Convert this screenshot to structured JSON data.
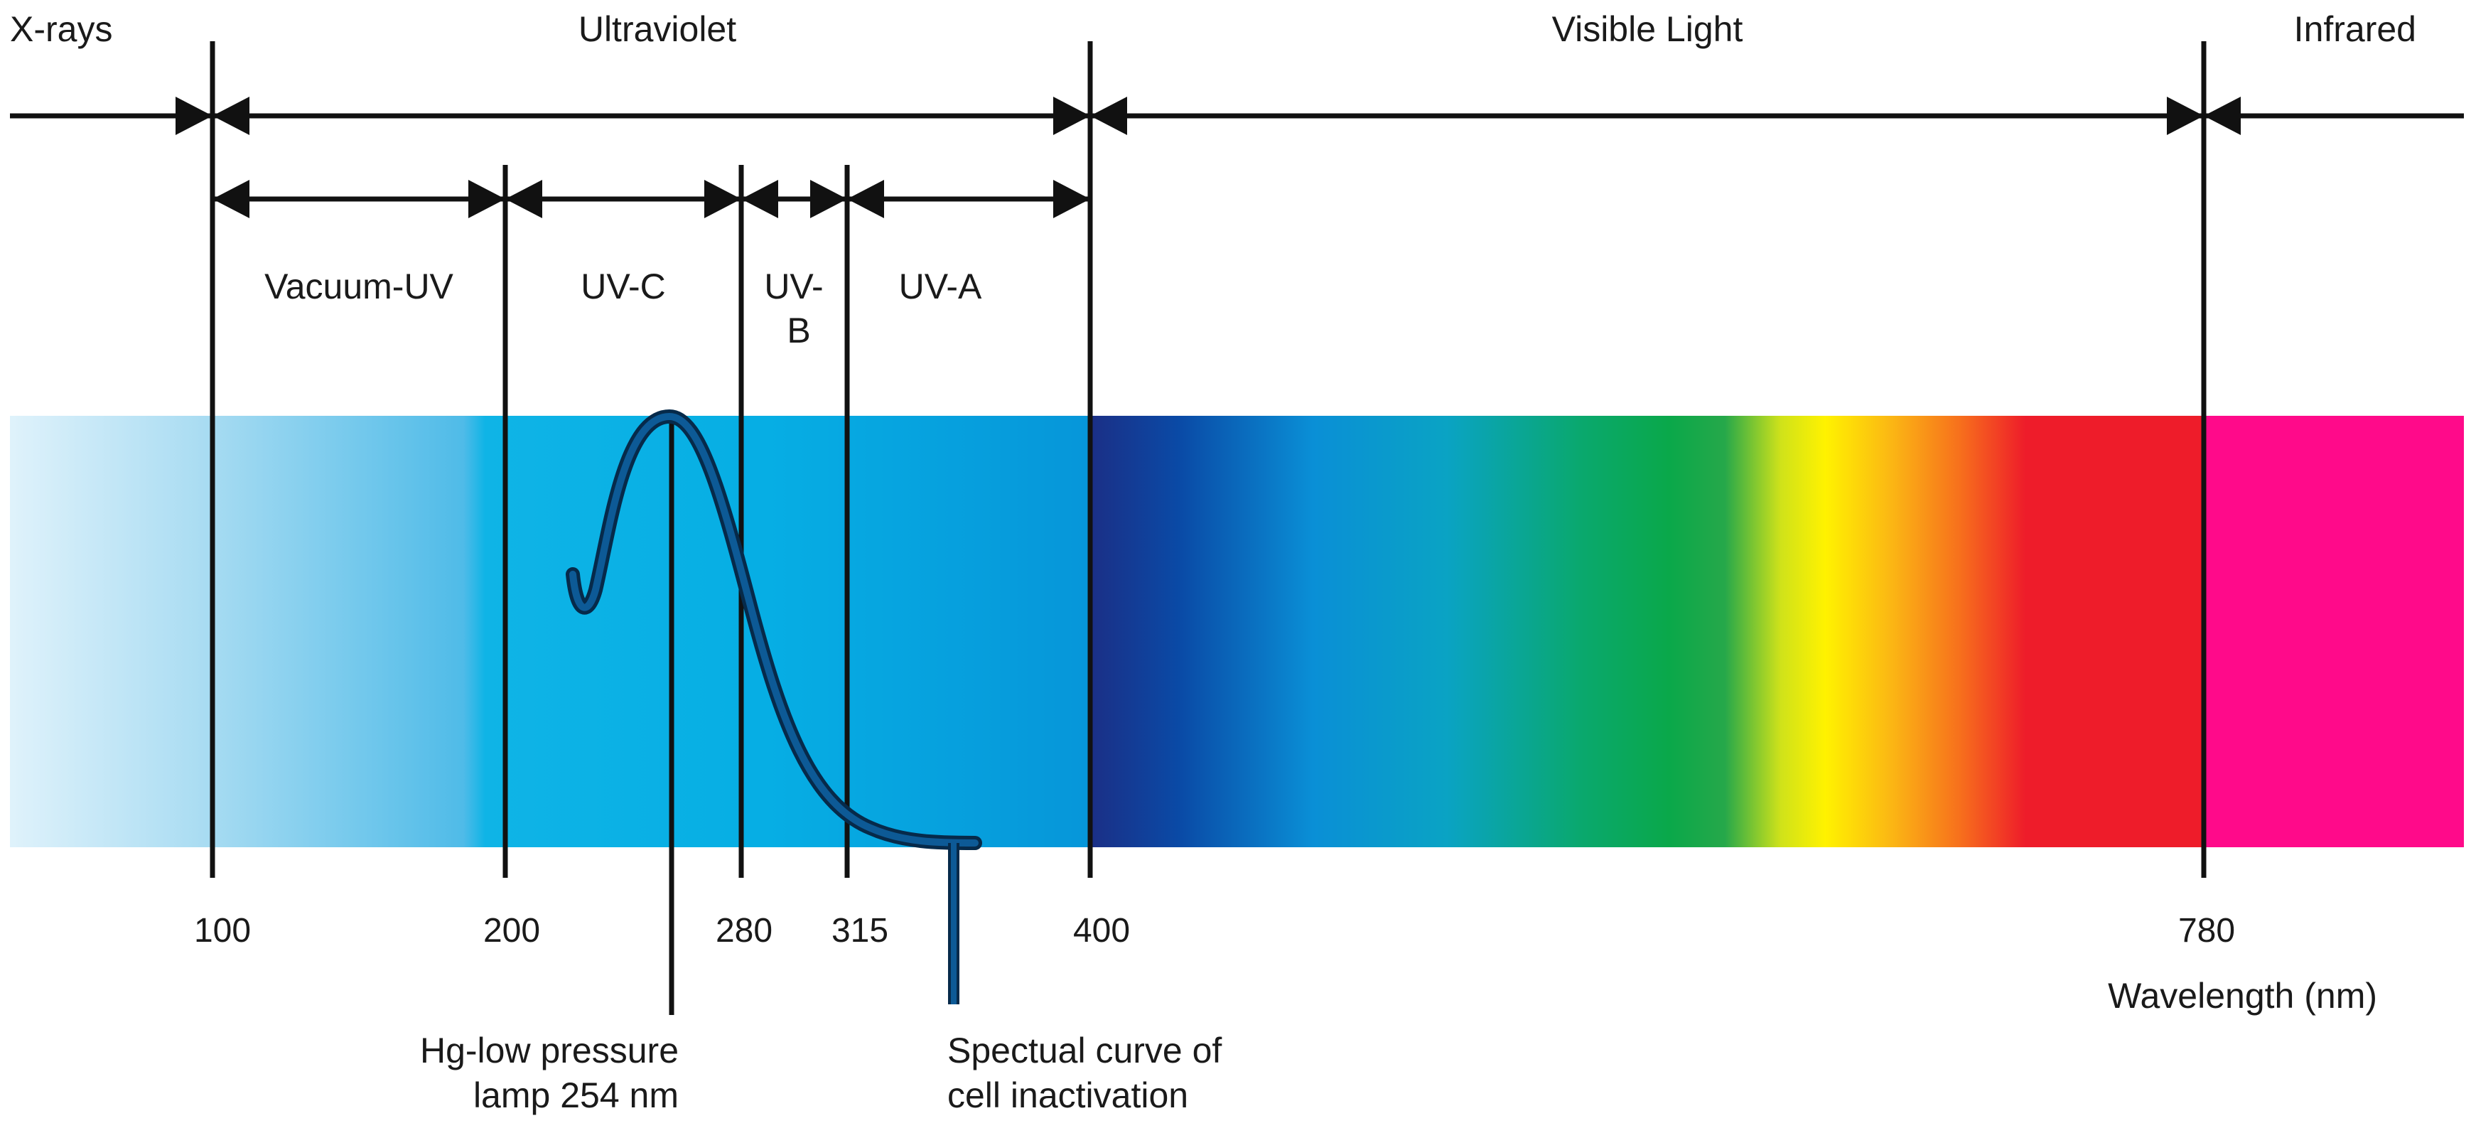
{
  "regions": {
    "xrays": "X-rays",
    "ultraviolet": "Ultraviolet",
    "visible": "Visible Light",
    "infrared": "Infrared"
  },
  "uv_bands": {
    "vacuum_uv": "Vacuum-UV",
    "uv_c": "UV-C",
    "uv_b_line1": "UV-",
    "uv_b_line2": "B",
    "uv_a": "UV-A"
  },
  "wavelength_ticks": [
    "100",
    "200",
    "280",
    "315",
    "400",
    "780"
  ],
  "axis_label": "Wavelength (nm)",
  "annotations": {
    "lamp_line1": "Hg-low pressure",
    "lamp_line2": "lamp 254 nm",
    "curve_line1": "Spectual curve of",
    "curve_line2": "cell inactivation"
  },
  "colors": {
    "line": "#111111",
    "curve": "#0d4f86",
    "curve_outline": "#062a4a"
  }
}
